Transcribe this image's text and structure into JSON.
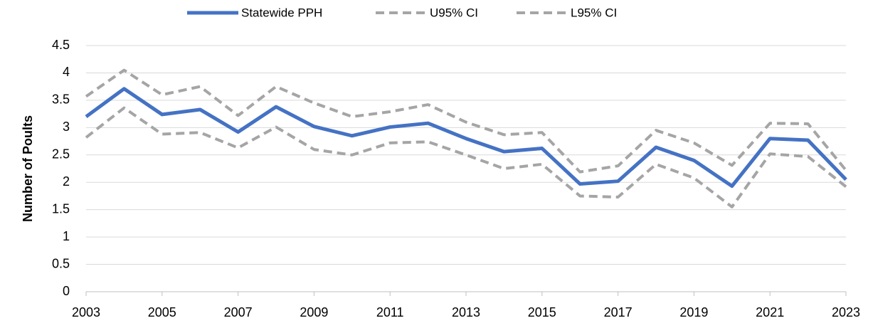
{
  "chart_data": {
    "type": "line",
    "y_label": "Number of Poults",
    "x": [
      2003,
      2004,
      2005,
      2006,
      2007,
      2008,
      2009,
      2010,
      2011,
      2012,
      2013,
      2014,
      2015,
      2016,
      2017,
      2018,
      2019,
      2020,
      2021,
      2022,
      2023
    ],
    "series": [
      {
        "name": "Statewide PPH",
        "color": "#4472c4",
        "dashed": false,
        "values": [
          3.2,
          3.71,
          3.24,
          3.33,
          2.92,
          3.38,
          3.02,
          2.85,
          3.01,
          3.08,
          2.8,
          2.56,
          2.62,
          1.97,
          2.02,
          2.64,
          2.4,
          1.93,
          2.8,
          2.77,
          2.05
        ]
      },
      {
        "name": "U95% CI",
        "color": "#a5a5a5",
        "dashed": true,
        "values": [
          3.57,
          4.05,
          3.6,
          3.75,
          3.22,
          3.75,
          3.45,
          3.2,
          3.29,
          3.42,
          3.1,
          2.87,
          2.91,
          2.19,
          2.3,
          2.95,
          2.72,
          2.31,
          3.08,
          3.07,
          2.22
        ]
      },
      {
        "name": "L95% CI",
        "color": "#a5a5a5",
        "dashed": true,
        "values": [
          2.82,
          3.36,
          2.88,
          2.91,
          2.63,
          3.01,
          2.6,
          2.5,
          2.72,
          2.74,
          2.5,
          2.25,
          2.33,
          1.75,
          1.73,
          2.33,
          2.08,
          1.55,
          2.52,
          2.47,
          1.92
        ]
      }
    ],
    "xlim": [
      2003,
      2023
    ],
    "xticks": [
      2003,
      2005,
      2007,
      2009,
      2011,
      2013,
      2015,
      2017,
      2019,
      2021,
      2023
    ],
    "ylim": [
      0,
      4.5
    ],
    "yticks": [
      0,
      0.5,
      1,
      1.5,
      2,
      2.5,
      3,
      3.5,
      4,
      4.5
    ],
    "grid": true,
    "legend": "top"
  }
}
